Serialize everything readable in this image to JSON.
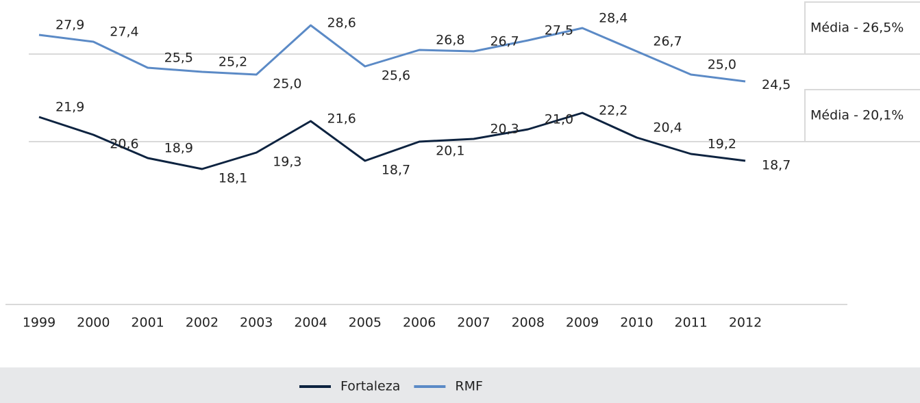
{
  "chart_data": {
    "type": "line",
    "categories": [
      "1999",
      "2000",
      "2001",
      "2002",
      "2003",
      "2004",
      "2005",
      "2006",
      "2007",
      "2008",
      "2009",
      "2010",
      "2011",
      "2012"
    ],
    "series": [
      {
        "name": "Fortaleza",
        "color": "#0d2340",
        "values": [
          21.9,
          20.6,
          18.9,
          18.1,
          19.3,
          21.6,
          18.7,
          20.1,
          20.3,
          21.0,
          22.2,
          20.4,
          19.2,
          18.7
        ],
        "value_labels": [
          "21,9",
          "20,6",
          "18,9",
          "18,1",
          "19,3",
          "21,6",
          "18,7",
          "20,1",
          "20,3",
          "21,0",
          "22,2",
          "20,4",
          "19,2",
          "18,7"
        ]
      },
      {
        "name": "RMF",
        "color": "#5b8ac6",
        "values": [
          27.9,
          27.4,
          25.5,
          25.2,
          25.0,
          28.6,
          25.6,
          26.8,
          26.7,
          27.5,
          28.4,
          26.7,
          25.0,
          24.5
        ],
        "value_labels": [
          "27,9",
          "27,4",
          "25,5",
          "25,2",
          "25,0",
          "28,6",
          "25,6",
          "26,8",
          "26,7",
          "27,5",
          "28,4",
          "26,7",
          "25,0",
          "24,5"
        ]
      }
    ],
    "annotations": [
      {
        "text": "Média - 26,5%",
        "value": 26.5
      },
      {
        "text": "Média - 20,1%",
        "value": 20.1
      }
    ],
    "ylim": [
      8.2,
      30.45
    ],
    "legend": "bottom"
  }
}
